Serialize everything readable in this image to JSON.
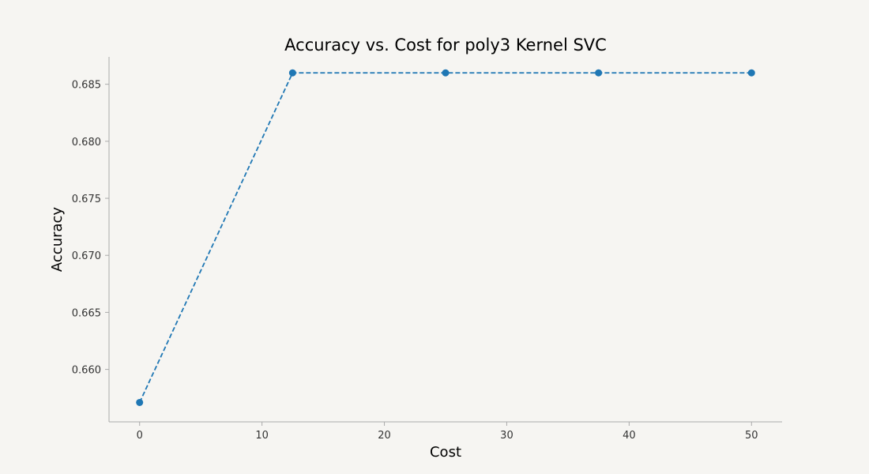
{
  "chart_data": {
    "type": "line",
    "title": "Accuracy vs. Cost for poly3 Kernel SVC",
    "xlabel": "Cost",
    "ylabel": "Accuracy",
    "xlim": [
      -2.5,
      52.5
    ],
    "ylim": [
      0.6554,
      0.6874
    ],
    "xticks": [
      0,
      10,
      20,
      30,
      40,
      50
    ],
    "xtick_labels": [
      "0",
      "10",
      "20",
      "30",
      "40",
      "50"
    ],
    "yticks": [
      0.66,
      0.665,
      0.67,
      0.675,
      0.68,
      0.685
    ],
    "ytick_labels": [
      "0.660",
      "0.665",
      "0.670",
      "0.675",
      "0.680",
      "0.685"
    ],
    "grid": false,
    "series": [
      {
        "x": [
          0.0,
          12.5,
          25.0,
          37.5,
          50.0
        ],
        "y": [
          0.6571,
          0.686,
          0.686,
          0.686,
          0.686
        ],
        "color": "#1f77b4",
        "line_style": "dashed",
        "marker": "circle"
      }
    ],
    "axis_color": "#aaaaaa",
    "background": "#f6f5f2"
  }
}
